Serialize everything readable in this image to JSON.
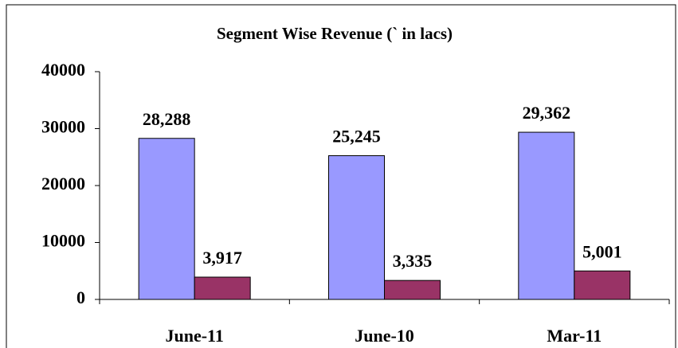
{
  "chart_data": {
    "type": "bar",
    "title": "Segment Wise Revenue (` in lacs)",
    "categories": [
      "June-11",
      "June-10",
      "Mar-11"
    ],
    "series": [
      {
        "color": "#9999ff",
        "values": [
          28288,
          25245,
          29362
        ],
        "value_labels": [
          "28,288",
          "25,245",
          "29,362"
        ]
      },
      {
        "color": "#993366",
        "values": [
          3917,
          3335,
          5001
        ],
        "value_labels": [
          "3,917",
          "3,335",
          "5,001"
        ]
      }
    ],
    "ylim": [
      0,
      40000
    ],
    "yticks": [
      0,
      10000,
      20000,
      30000,
      40000
    ],
    "grid": false
  }
}
